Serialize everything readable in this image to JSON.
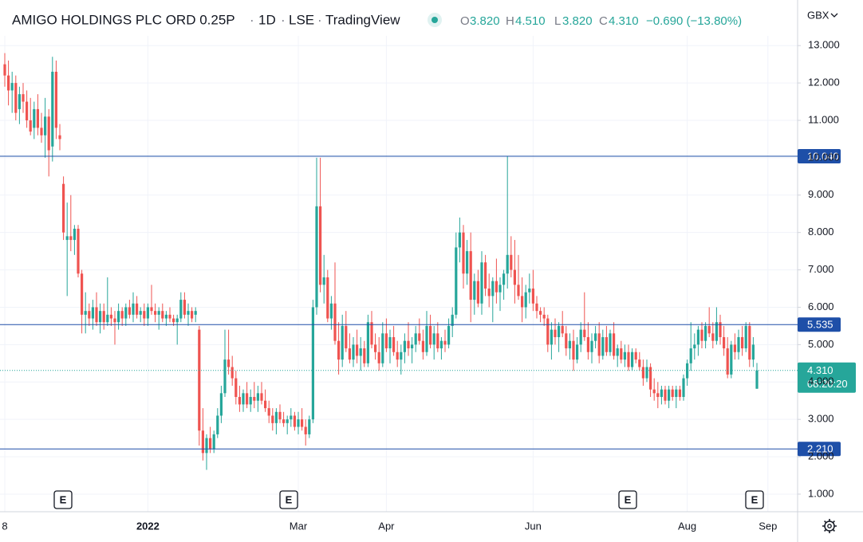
{
  "chart_data": {
    "type": "candlestick",
    "header": {
      "symbol": "AMIGO HOLDINGS PLC ORD 0.25P",
      "interval": "1D",
      "exchange": "LSE",
      "source": "TradingView",
      "o_label": "O",
      "open": "3.820",
      "h_label": "H",
      "high": "4.510",
      "l_label": "L",
      "low": "3.820",
      "c_label": "C",
      "close": "4.310",
      "change": "−0.690 (−13.80%)"
    },
    "currency": "GBX",
    "up_color": "#26a69a",
    "down_color": "#ef5350",
    "grid": true,
    "ylim": [
      0.53,
      13.26
    ],
    "yticks": [
      {
        "value": 1,
        "label": "1.000"
      },
      {
        "value": 2,
        "label": "2.000"
      },
      {
        "value": 3,
        "label": "3.000"
      },
      {
        "value": 4,
        "label": "4.000"
      },
      {
        "value": 5,
        "label": "5.000"
      },
      {
        "value": 6,
        "label": "6.000"
      },
      {
        "value": 7,
        "label": "7.000"
      },
      {
        "value": 8,
        "label": "8.000"
      },
      {
        "value": 9,
        "label": "9.000"
      },
      {
        "value": 10,
        "label": "10.000"
      },
      {
        "value": 11,
        "label": "11.000"
      },
      {
        "value": 12,
        "label": "12.000"
      },
      {
        "value": 13,
        "label": "13.000"
      }
    ],
    "hlines": [
      {
        "value": 10.04,
        "label": "10.040"
      },
      {
        "value": 5.535,
        "label": "5.535"
      },
      {
        "value": 2.21,
        "label": "2.210"
      }
    ],
    "hline_color": "#1e4fa8",
    "last_price": {
      "value": 4.31,
      "label": "4.310",
      "countdown": "08:20:20"
    },
    "earnings_markers": [
      "E",
      "E",
      "E",
      "E"
    ],
    "categories": [
      "8",
      null,
      null,
      null,
      null,
      null,
      null,
      null,
      null,
      null,
      null,
      null,
      null,
      null,
      null,
      null,
      null,
      null,
      null,
      null,
      null,
      null,
      null,
      null,
      null,
      null,
      null,
      null,
      null,
      null,
      null,
      null,
      null,
      null,
      null,
      null,
      null,
      null,
      null,
      "2022",
      null,
      null,
      null,
      null,
      null,
      null,
      null,
      null,
      null,
      null,
      null,
      null,
      null,
      null,
      null,
      null,
      null,
      null,
      null,
      null,
      null,
      null,
      null,
      null,
      null,
      null,
      null,
      null,
      null,
      null,
      null,
      null,
      null,
      null,
      null,
      null,
      null,
      null,
      null,
      null,
      "Mar",
      null,
      null,
      null,
      null,
      null,
      null,
      null,
      null,
      null,
      null,
      null,
      null,
      null,
      null,
      null,
      null,
      null,
      null,
      null,
      null,
      null,
      null,
      null,
      "Apr",
      null,
      null,
      null,
      null,
      null,
      null,
      null,
      null,
      null,
      null,
      null,
      null,
      null,
      null,
      null,
      null,
      null,
      null,
      null,
      null,
      null,
      null,
      null,
      null,
      null,
      null,
      null,
      null,
      null,
      null,
      null,
      null,
      null,
      null,
      null,
      null,
      null,
      null,
      null,
      "Jun",
      null,
      null,
      null,
      null,
      null,
      null,
      null,
      null,
      null,
      null,
      null,
      null,
      null,
      null,
      null,
      null,
      null,
      null,
      null,
      null,
      null,
      null,
      null,
      null,
      null,
      null,
      null,
      null,
      null,
      null,
      null,
      null,
      null,
      null,
      null,
      null,
      null,
      null,
      null,
      null,
      null,
      "Aug",
      null,
      null,
      null,
      null,
      null,
      null,
      null,
      null,
      null,
      null,
      null,
      null,
      null,
      null,
      null,
      null,
      null,
      null,
      null,
      null,
      null,
      "Sep"
    ],
    "candles": [
      [
        12.5,
        12.8,
        11.9,
        12.2
      ],
      [
        12.2,
        12.6,
        11.4,
        11.8
      ],
      [
        11.8,
        12.3,
        11.2,
        12.0
      ],
      [
        12.0,
        12.2,
        11.0,
        11.2
      ],
      [
        11.3,
        11.9,
        10.9,
        11.7
      ],
      [
        11.7,
        12.0,
        11.2,
        11.5
      ],
      [
        11.5,
        11.8,
        10.8,
        11.0
      ],
      [
        11.0,
        11.6,
        10.6,
        10.7
      ],
      [
        10.8,
        11.5,
        10.5,
        11.3
      ],
      [
        11.3,
        11.7,
        10.6,
        10.8
      ],
      [
        10.8,
        11.2,
        10.4,
        10.6
      ],
      [
        10.6,
        11.6,
        10.0,
        11.1
      ],
      [
        11.1,
        11.3,
        9.5,
        10.2
      ],
      [
        10.3,
        12.7,
        9.9,
        12.3
      ],
      [
        12.3,
        12.6,
        10.5,
        10.8
      ],
      [
        10.6,
        10.9,
        10.2,
        10.5
      ],
      [
        9.3,
        9.5,
        7.8,
        8.0
      ],
      [
        7.8,
        8.8,
        6.3,
        7.9
      ],
      [
        7.9,
        9.0,
        7.5,
        7.8
      ],
      [
        7.8,
        8.2,
        7.4,
        8.1
      ],
      [
        8.1,
        8.2,
        6.8,
        6.9
      ],
      [
        6.9,
        7.0,
        5.3,
        5.8
      ],
      [
        5.8,
        6.4,
        5.3,
        5.9
      ],
      [
        5.9,
        6.1,
        5.5,
        5.7
      ],
      [
        5.7,
        6.2,
        5.4,
        6.0
      ],
      [
        6.0,
        6.4,
        5.5,
        5.6
      ],
      [
        5.6,
        6.1,
        5.3,
        5.9
      ],
      [
        5.9,
        6.1,
        5.4,
        5.6
      ],
      [
        5.6,
        6.8,
        5.5,
        5.8
      ],
      [
        5.8,
        6.0,
        5.5,
        5.7
      ],
      [
        5.7,
        5.9,
        5.0,
        5.6
      ],
      [
        5.6,
        6.1,
        5.4,
        5.9
      ],
      [
        5.9,
        6.0,
        5.5,
        5.7
      ],
      [
        5.7,
        6.1,
        5.5,
        6.0
      ],
      [
        6.0,
        6.2,
        5.7,
        5.8
      ],
      [
        5.8,
        6.4,
        5.6,
        6.1
      ],
      [
        6.1,
        6.3,
        5.7,
        5.8
      ],
      [
        5.8,
        6.0,
        5.6,
        5.9
      ],
      [
        5.9,
        6.1,
        5.5,
        5.7
      ],
      [
        5.7,
        6.1,
        5.5,
        6.0
      ],
      [
        6.0,
        6.6,
        5.8,
        5.9
      ],
      [
        5.9,
        6.1,
        5.6,
        5.8
      ],
      [
        5.8,
        6.0,
        5.4,
        5.9
      ],
      [
        5.9,
        6.1,
        5.6,
        5.7
      ],
      [
        5.7,
        5.9,
        5.5,
        5.8
      ],
      [
        5.8,
        6.0,
        5.6,
        5.7
      ],
      [
        5.7,
        5.8,
        5.5,
        5.6
      ],
      [
        5.6,
        5.8,
        5.0,
        5.7
      ],
      [
        5.7,
        6.4,
        5.6,
        6.2
      ],
      [
        6.2,
        6.4,
        5.7,
        5.8
      ],
      [
        5.8,
        6.1,
        5.5,
        5.9
      ],
      [
        5.9,
        6.0,
        5.6,
        5.7
      ],
      [
        5.8,
        6.0,
        5.6,
        5.9
      ],
      [
        5.4,
        5.5,
        2.3,
        2.7
      ],
      [
        2.7,
        3.3,
        1.9,
        2.1
      ],
      [
        2.1,
        2.6,
        1.65,
        2.5
      ],
      [
        2.5,
        2.8,
        2.1,
        2.2
      ],
      [
        2.2,
        2.7,
        2.1,
        2.6
      ],
      [
        2.6,
        3.3,
        2.5,
        3.1
      ],
      [
        3.1,
        3.9,
        2.9,
        3.7
      ],
      [
        3.7,
        5.4,
        3.6,
        4.6
      ],
      [
        4.6,
        5.4,
        4.2,
        4.4
      ],
      [
        4.4,
        4.7,
        3.9,
        4.1
      ],
      [
        4.1,
        4.3,
        3.4,
        3.6
      ],
      [
        3.6,
        3.9,
        3.2,
        3.4
      ],
      [
        3.4,
        3.8,
        3.2,
        3.7
      ],
      [
        3.7,
        4.0,
        3.3,
        3.4
      ],
      [
        3.4,
        3.8,
        3.2,
        3.6
      ],
      [
        3.6,
        4.0,
        3.3,
        3.5
      ],
      [
        3.5,
        3.9,
        3.2,
        3.7
      ],
      [
        3.7,
        4.0,
        3.4,
        3.5
      ],
      [
        3.5,
        3.8,
        3.2,
        3.3
      ],
      [
        3.3,
        3.5,
        2.9,
        3.1
      ],
      [
        3.1,
        3.3,
        2.7,
        2.9
      ],
      [
        2.9,
        3.3,
        2.6,
        3.2
      ],
      [
        3.2,
        3.4,
        2.9,
        3.0
      ],
      [
        3.0,
        3.2,
        2.8,
        2.9
      ],
      [
        2.9,
        3.1,
        2.6,
        3.0
      ],
      [
        3.0,
        3.3,
        2.8,
        3.1
      ],
      [
        3.1,
        3.2,
        2.7,
        2.8
      ],
      [
        2.8,
        3.2,
        2.6,
        3.0
      ],
      [
        3.0,
        3.3,
        2.7,
        2.8
      ],
      [
        2.8,
        3.0,
        2.3,
        2.6
      ],
      [
        2.6,
        3.1,
        2.5,
        3.0
      ],
      [
        3.0,
        6.2,
        2.9,
        6.0
      ],
      [
        6.0,
        10.0,
        5.8,
        8.7
      ],
      [
        8.7,
        10.0,
        6.4,
        6.6
      ],
      [
        6.6,
        7.4,
        6.1,
        6.8
      ],
      [
        6.8,
        7.0,
        5.6,
        5.7
      ],
      [
        5.7,
        6.3,
        5.4,
        6.1
      ],
      [
        6.1,
        7.2,
        5.0,
        5.1
      ],
      [
        5.1,
        5.6,
        4.2,
        4.6
      ],
      [
        4.6,
        5.8,
        4.4,
        5.5
      ],
      [
        5.5,
        5.9,
        4.8,
        4.9
      ],
      [
        4.9,
        5.3,
        4.5,
        4.6
      ],
      [
        4.6,
        5.2,
        4.4,
        5.0
      ],
      [
        5.0,
        5.4,
        4.5,
        4.7
      ],
      [
        4.7,
        5.2,
        4.3,
        4.9
      ],
      [
        4.9,
        5.1,
        4.4,
        4.5
      ],
      [
        4.5,
        5.8,
        4.4,
        5.6
      ],
      [
        5.6,
        5.9,
        4.9,
        5.0
      ],
      [
        5.0,
        5.3,
        4.6,
        4.8
      ],
      [
        4.8,
        5.2,
        4.3,
        4.5
      ],
      [
        4.5,
        5.6,
        4.4,
        5.3
      ],
      [
        5.3,
        5.7,
        4.8,
        4.9
      ],
      [
        4.9,
        5.4,
        4.5,
        5.2
      ],
      [
        5.2,
        5.5,
        4.7,
        4.8
      ],
      [
        4.8,
        5.1,
        4.4,
        4.6
      ],
      [
        4.6,
        5.0,
        4.2,
        4.8
      ],
      [
        4.8,
        5.3,
        4.5,
        5.1
      ],
      [
        5.1,
        5.6,
        4.7,
        4.9
      ],
      [
        4.9,
        5.2,
        4.5,
        5.0
      ],
      [
        5.0,
        5.5,
        4.8,
        5.3
      ],
      [
        5.3,
        5.7,
        5.0,
        5.1
      ],
      [
        5.1,
        5.4,
        4.6,
        4.8
      ],
      [
        4.8,
        5.9,
        4.7,
        5.5
      ],
      [
        5.5,
        5.8,
        4.9,
        5.0
      ],
      [
        5.0,
        5.5,
        4.6,
        5.3
      ],
      [
        5.3,
        5.6,
        4.8,
        4.9
      ],
      [
        4.9,
        5.2,
        4.6,
        5.1
      ],
      [
        5.1,
        5.4,
        4.8,
        5.0
      ],
      [
        5.0,
        5.7,
        4.9,
        5.5
      ],
      [
        5.5,
        6.0,
        5.2,
        5.8
      ],
      [
        5.8,
        8.0,
        5.7,
        7.6
      ],
      [
        7.6,
        8.4,
        7.2,
        8.0
      ],
      [
        8.0,
        8.2,
        6.5,
        6.9
      ],
      [
        6.9,
        7.8,
        6.6,
        7.5
      ],
      [
        7.5,
        8.0,
        5.6,
        6.2
      ],
      [
        6.2,
        6.9,
        5.8,
        6.7
      ],
      [
        6.7,
        7.0,
        6.0,
        6.1
      ],
      [
        6.1,
        7.5,
        5.8,
        7.2
      ],
      [
        7.2,
        7.4,
        6.3,
        6.5
      ],
      [
        6.5,
        6.9,
        6.0,
        6.3
      ],
      [
        6.3,
        6.8,
        5.6,
        6.7
      ],
      [
        6.7,
        7.3,
        6.1,
        6.4
      ],
      [
        6.4,
        6.8,
        5.9,
        6.6
      ],
      [
        6.6,
        7.0,
        6.2,
        6.9
      ],
      [
        6.9,
        10.04,
        6.5,
        7.4
      ],
      [
        7.4,
        7.9,
        6.8,
        7.0
      ],
      [
        7.0,
        7.8,
        6.1,
        6.6
      ],
      [
        6.6,
        7.4,
        6.2,
        6.3
      ],
      [
        6.3,
        6.8,
        5.6,
        6.0
      ],
      [
        6.0,
        6.6,
        5.7,
        6.4
      ],
      [
        6.4,
        6.9,
        6.1,
        6.5
      ],
      [
        6.5,
        7.0,
        5.9,
        6.1
      ],
      [
        6.1,
        6.3,
        5.7,
        5.9
      ],
      [
        5.9,
        6.0,
        5.6,
        5.8
      ],
      [
        5.8,
        6.0,
        5.5,
        5.7
      ],
      [
        5.7,
        5.8,
        4.8,
        5.0
      ],
      [
        5.0,
        5.6,
        4.6,
        5.4
      ],
      [
        5.4,
        5.7,
        5.0,
        5.2
      ],
      [
        5.2,
        5.6,
        4.8,
        5.5
      ],
      [
        5.5,
        5.9,
        5.2,
        5.3
      ],
      [
        5.3,
        5.5,
        4.7,
        4.9
      ],
      [
        4.9,
        5.3,
        4.6,
        5.1
      ],
      [
        5.1,
        5.4,
        4.3,
        4.6
      ],
      [
        4.6,
        5.2,
        4.5,
        5.0
      ],
      [
        5.0,
        5.6,
        4.8,
        5.4
      ],
      [
        5.4,
        6.4,
        5.1,
        5.2
      ],
      [
        5.2,
        5.6,
        4.6,
        4.8
      ],
      [
        4.8,
        5.3,
        4.5,
        5.1
      ],
      [
        5.1,
        5.5,
        4.9,
        5.3
      ],
      [
        5.3,
        5.6,
        4.5,
        4.7
      ],
      [
        4.7,
        5.4,
        4.6,
        5.2
      ],
      [
        5.2,
        5.5,
        4.7,
        4.8
      ],
      [
        4.8,
        5.4,
        4.7,
        5.3
      ],
      [
        5.3,
        5.6,
        4.6,
        4.7
      ],
      [
        4.7,
        5.0,
        4.4,
        4.9
      ],
      [
        4.9,
        5.1,
        4.5,
        4.6
      ],
      [
        4.6,
        5.0,
        4.4,
        4.8
      ],
      [
        4.8,
        5.0,
        4.3,
        4.4
      ],
      [
        4.4,
        4.9,
        4.3,
        4.8
      ],
      [
        4.8,
        4.9,
        4.5,
        4.6
      ],
      [
        4.6,
        4.8,
        4.3,
        4.4
      ],
      [
        4.4,
        4.6,
        3.9,
        4.1
      ],
      [
        4.1,
        4.6,
        4.0,
        4.4
      ],
      [
        4.4,
        4.5,
        3.6,
        3.8
      ],
      [
        3.8,
        4.1,
        3.5,
        3.7
      ],
      [
        3.7,
        4.0,
        3.3,
        3.6
      ],
      [
        3.6,
        3.9,
        3.4,
        3.8
      ],
      [
        3.8,
        3.9,
        3.4,
        3.5
      ],
      [
        3.5,
        3.9,
        3.3,
        3.8
      ],
      [
        3.8,
        3.9,
        3.5,
        3.6
      ],
      [
        3.6,
        3.9,
        3.3,
        3.8
      ],
      [
        3.8,
        3.9,
        3.5,
        3.6
      ],
      [
        3.6,
        4.2,
        3.5,
        4.1
      ],
      [
        4.1,
        4.6,
        3.9,
        4.5
      ],
      [
        4.5,
        5.6,
        4.3,
        4.9
      ],
      [
        4.9,
        5.3,
        4.6,
        5.0
      ],
      [
        5.0,
        5.5,
        4.7,
        5.4
      ],
      [
        5.4,
        5.6,
        4.9,
        5.1
      ],
      [
        5.1,
        5.6,
        4.9,
        5.5
      ],
      [
        5.5,
        6.0,
        5.2,
        5.3
      ],
      [
        5.3,
        5.6,
        4.9,
        5.1
      ],
      [
        5.1,
        6.0,
        5.0,
        5.6
      ],
      [
        5.6,
        5.8,
        5.0,
        5.2
      ],
      [
        5.2,
        5.5,
        4.7,
        4.9
      ],
      [
        4.9,
        5.2,
        4.1,
        4.2
      ],
      [
        4.2,
        5.1,
        4.1,
        5.0
      ],
      [
        5.0,
        5.3,
        4.6,
        4.8
      ],
      [
        4.8,
        5.4,
        4.6,
        5.2
      ],
      [
        5.2,
        5.5,
        4.7,
        4.9
      ],
      [
        4.9,
        5.6,
        4.8,
        5.5
      ],
      [
        5.5,
        5.6,
        4.4,
        4.6
      ],
      [
        4.6,
        5.2,
        4.4,
        5.0
      ],
      [
        3.82,
        4.51,
        3.82,
        4.31
      ],
      null,
      null,
      null
    ]
  }
}
